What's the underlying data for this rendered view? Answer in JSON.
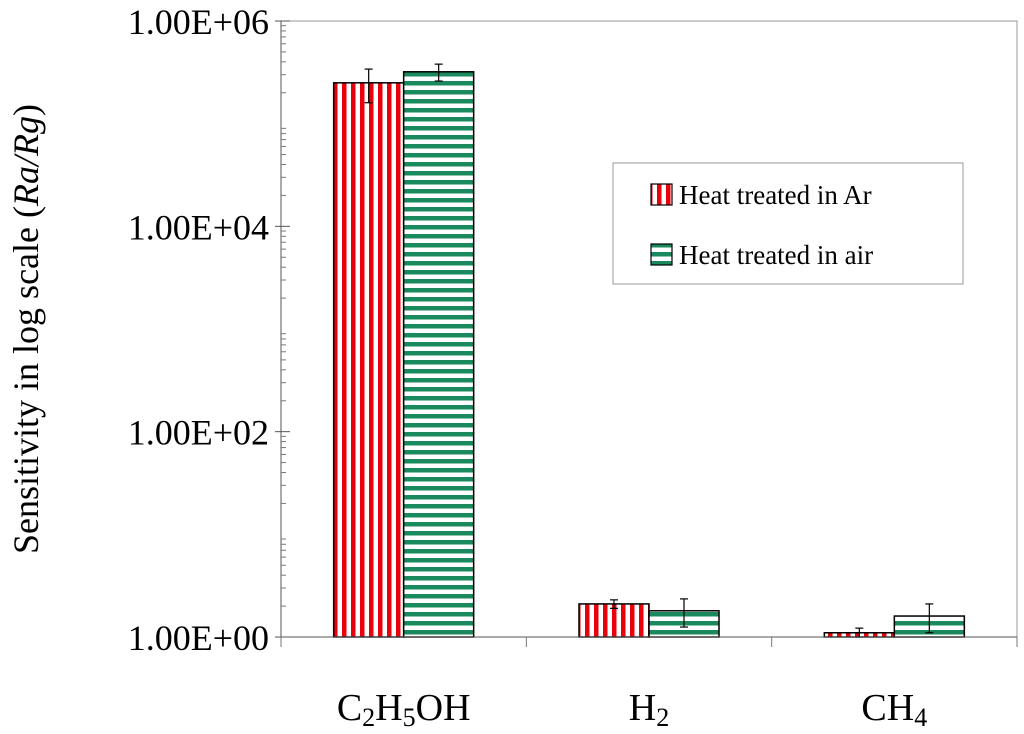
{
  "chart_data": {
    "type": "bar",
    "categories": [
      "C2H5OH",
      "H2",
      "CH4"
    ],
    "category_labels": [
      {
        "parts": [
          {
            "t": "C"
          },
          {
            "t": "2",
            "sub": true
          },
          {
            "t": "H"
          },
          {
            "t": "5",
            "sub": true
          },
          {
            "t": "OH"
          }
        ]
      },
      {
        "parts": [
          {
            "t": "H"
          },
          {
            "t": "2",
            "sub": true
          }
        ]
      },
      {
        "parts": [
          {
            "t": "CH"
          },
          {
            "t": "4",
            "sub": true
          }
        ]
      }
    ],
    "series": [
      {
        "name": "Heat treated in Ar",
        "values": [
          250000,
          2.1,
          1.1
        ],
        "errors": [
          90000,
          0.2,
          0.12
        ],
        "color": "#e8000b",
        "pattern": "vertical"
      },
      {
        "name": "Heat treated in air",
        "values": [
          320000,
          1.8,
          1.6
        ],
        "errors": [
          60000,
          0.55,
          0.5
        ],
        "color": "#1a8a5e",
        "pattern": "horizontal"
      }
    ],
    "yscale": "log",
    "ylim": [
      1,
      1000000
    ],
    "yticks": [
      1,
      100,
      10000,
      1000000
    ],
    "ytick_labels": [
      "1.00E+00",
      "1.00E+02",
      "1.00E+04",
      "1.00E+06"
    ],
    "ylabel_parts": [
      {
        "t": "Sensitivity in log scale ("
      },
      {
        "t": "Ra/Rg",
        "italic": true
      },
      {
        "t": ")"
      }
    ],
    "xlabel": "",
    "title": "",
    "legend_position": "right-upper",
    "grid": false
  }
}
